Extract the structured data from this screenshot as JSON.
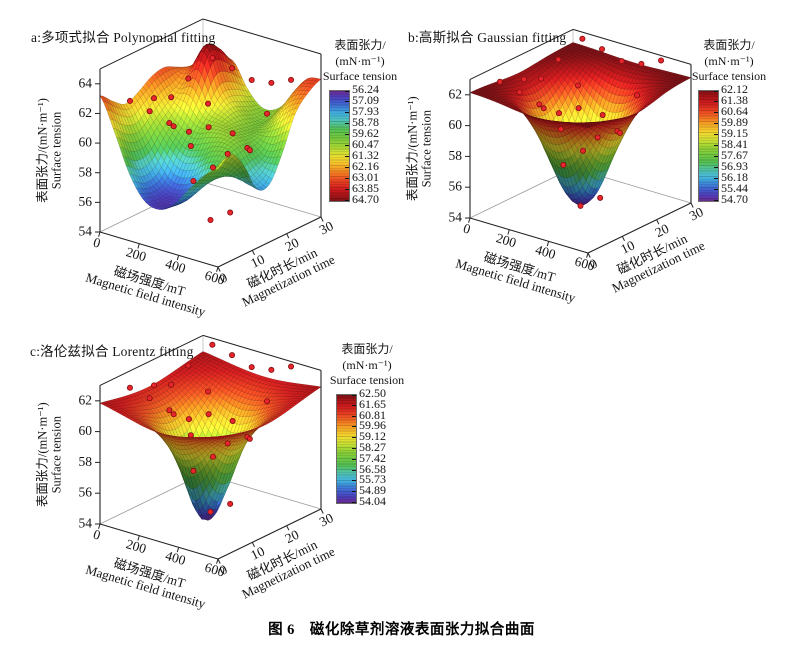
{
  "figure": {
    "caption": "图 6　磁化除草剂溶液表面张力拟合曲面"
  },
  "chart_data": {
    "type": "surface_3d",
    "colormap": {
      "stops": [
        [
          0.0,
          "#6b2a8f"
        ],
        [
          0.06,
          "#4b3fc0"
        ],
        [
          0.13,
          "#3b6fd6"
        ],
        [
          0.2,
          "#41aede"
        ],
        [
          0.27,
          "#52c7c0"
        ],
        [
          0.34,
          "#4fbe54"
        ],
        [
          0.44,
          "#7bcb3b"
        ],
        [
          0.52,
          "#aed832"
        ],
        [
          0.58,
          "#e5e634"
        ],
        [
          0.65,
          "#f6c62b"
        ],
        [
          0.72,
          "#f59422"
        ],
        [
          0.79,
          "#f05623"
        ],
        [
          0.88,
          "#d61d1f"
        ],
        [
          0.95,
          "#a81418"
        ],
        [
          1.0,
          "#7d1116"
        ]
      ]
    },
    "point_color": "#e8252b",
    "data_points": [
      [
        100,
        3,
        62.9
      ],
      [
        100,
        10,
        62.3
      ],
      [
        100,
        15,
        61.8
      ],
      [
        100,
        20,
        62.5
      ],
      [
        100,
        27,
        63.1
      ],
      [
        200,
        3,
        62.6
      ],
      [
        200,
        10,
        60.8
      ],
      [
        200,
        15,
        58.9
      ],
      [
        200,
        20,
        61.2
      ],
      [
        200,
        27,
        62.8
      ],
      [
        300,
        3,
        62.2
      ],
      [
        300,
        10,
        57.5
      ],
      [
        300,
        15,
        54.3
      ],
      [
        300,
        20,
        58.2
      ],
      [
        300,
        27,
        62.4
      ],
      [
        400,
        3,
        62.0
      ],
      [
        400,
        10,
        58.8
      ],
      [
        400,
        15,
        55.2
      ],
      [
        400,
        20,
        59.0
      ],
      [
        400,
        27,
        62.6
      ],
      [
        500,
        3,
        62.7
      ],
      [
        500,
        10,
        61.5
      ],
      [
        500,
        15,
        59.8
      ],
      [
        500,
        20,
        61.7
      ],
      [
        500,
        27,
        63.2
      ]
    ],
    "charts": [
      {
        "id": "a",
        "title": "a:多项式拟合 Polynomial fitting",
        "x_axis": {
          "label_cn": "磁场强度/mT",
          "label_en": "Magnetic field intensity",
          "range": [
            0,
            600
          ],
          "ticks": [
            0,
            200,
            400,
            600
          ]
        },
        "y_axis": {
          "label_cn": "磁化时长/min",
          "label_en": "Magnetization time",
          "range": [
            0,
            30
          ],
          "ticks": [
            0,
            10,
            20,
            30
          ]
        },
        "z_axis": {
          "label_cn": "表面张力/(mN·m⁻¹)",
          "label_en": "Surface tension",
          "range": [
            54,
            65
          ],
          "ticks": [
            54,
            56,
            58,
            60,
            62,
            64
          ]
        },
        "colorbar": {
          "title_cn": "表面张力/",
          "title_unit": "(mN·m⁻¹)",
          "title_en": "Surface tension",
          "low_at_top": true,
          "range": [
            56.24,
            64.7
          ],
          "tick_labels": [
            "56.24",
            "57.09",
            "57.93",
            "58.78",
            "59.62",
            "60.47",
            "61.32",
            "62.16",
            "63.01",
            "63.85",
            "64.70"
          ]
        },
        "surface_grid": [
          [
            63.2,
            61.0,
            58.5,
            57.0,
            56.7,
            57.3,
            58.6,
            59.8,
            60.6
          ],
          [
            62.4,
            60.2,
            57.9,
            56.8,
            56.7,
            57.2,
            58.3,
            59.5,
            61.2
          ],
          [
            61.8,
            60.0,
            58.2,
            57.1,
            57.2,
            58.0,
            58.8,
            59.0,
            60.0
          ],
          [
            62.2,
            60.8,
            59.5,
            58.6,
            58.8,
            59.5,
            59.6,
            58.4,
            58.0
          ],
          [
            62.8,
            61.5,
            60.6,
            59.9,
            60.2,
            60.3,
            59.9,
            58.6,
            57.9
          ],
          [
            63.0,
            62.0,
            62.5,
            61.0,
            60.6,
            60.2,
            59.8,
            59.2,
            59.6
          ],
          [
            62.6,
            63.0,
            64.6,
            62.0,
            60.8,
            60.0,
            60.2,
            61.0,
            61.8
          ],
          [
            62.2,
            62.8,
            64.0,
            61.8,
            60.4,
            60.0,
            61.0,
            62.4,
            62.8
          ],
          [
            62.5,
            62.2,
            62.8,
            61.2,
            60.2,
            60.4,
            61.5,
            63.0,
            63.3
          ]
        ]
      },
      {
        "id": "b",
        "title": "b:高斯拟合 Gaussian fitting",
        "x_axis": {
          "label_cn": "磁场强度/mT",
          "label_en": "Magnetic field intensity",
          "range": [
            0,
            600
          ],
          "ticks": [
            0,
            200,
            400,
            600
          ]
        },
        "y_axis": {
          "label_cn": "磁化时长/min",
          "label_en": "Magnetization time",
          "range": [
            0,
            30
          ],
          "ticks": [
            0,
            10,
            20,
            30
          ]
        },
        "z_axis": {
          "label_cn": "表面张力/(mN·m⁻¹)",
          "label_en": "Surface tension",
          "range": [
            54,
            63
          ],
          "ticks": [
            54,
            56,
            58,
            60,
            62
          ]
        },
        "colorbar": {
          "title_cn": "表面张力/",
          "title_unit": "(mN·m⁻¹)",
          "title_en": "Surface tension",
          "low_at_top": false,
          "range": [
            54.7,
            62.12
          ],
          "tick_labels": [
            "62.12",
            "61.38",
            "60.64",
            "59.89",
            "59.15",
            "58.41",
            "57.67",
            "56.93",
            "56.18",
            "55.44",
            "54.70"
          ]
        },
        "surface_grid": [
          [
            62.14,
            62.1,
            62.01,
            61.88,
            61.79,
            61.82,
            61.94,
            62.06,
            62.12
          ],
          [
            62.1,
            61.94,
            61.57,
            61.03,
            60.68,
            60.79,
            61.29,
            61.77,
            62.03
          ],
          [
            62.01,
            61.59,
            60.59,
            59.17,
            58.22,
            58.54,
            59.85,
            61.14,
            61.84
          ],
          [
            61.91,
            61.19,
            59.47,
            57.03,
            55.4,
            55.95,
            58.2,
            60.41,
            61.62
          ],
          [
            61.88,
            61.08,
            59.19,
            56.48,
            54.67,
            55.28,
            57.78,
            60.23,
            61.56
          ],
          [
            61.96,
            61.38,
            60.03,
            58.09,
            56.79,
            57.23,
            59.02,
            60.77,
            61.73
          ],
          [
            62.06,
            61.8,
            61.18,
            60.29,
            59.69,
            59.89,
            60.72,
            61.52,
            61.96
          ],
          [
            62.12,
            62.05,
            61.86,
            61.6,
            61.42,
            61.48,
            61.72,
            61.96,
            62.09
          ],
          [
            62.15,
            62.13,
            62.09,
            62.04,
            62.01,
            62.02,
            62.07,
            62.11,
            62.14
          ]
        ]
      },
      {
        "id": "c",
        "title": "c:洛伦兹拟合 Lorentz fitting",
        "x_axis": {
          "label_cn": "磁场强度/mT",
          "label_en": "Magnetic field intensity",
          "range": [
            0,
            600
          ],
          "ticks": [
            0,
            200,
            400,
            600
          ]
        },
        "y_axis": {
          "label_cn": "磁化时长/min",
          "label_en": "Magnetization time",
          "range": [
            0,
            30
          ],
          "ticks": [
            0,
            10,
            20,
            30
          ]
        },
        "z_axis": {
          "label_cn": "表面张力/(mN·m⁻¹)",
          "label_en": "Surface tension",
          "range": [
            54,
            63
          ],
          "ticks": [
            54,
            56,
            58,
            60,
            62
          ]
        },
        "colorbar": {
          "title_cn": "表面张力/",
          "title_unit": "(mN·m⁻¹)",
          "title_en": "Surface tension",
          "low_at_top": false,
          "range": [
            54.04,
            62.5
          ],
          "tick_labels": [
            "62.50",
            "61.65",
            "60.81",
            "59.96",
            "59.12",
            "58.27",
            "57.42",
            "56.58",
            "55.73",
            "54.89",
            "54.04"
          ]
        },
        "surface_grid": [
          [
            61.84,
            61.63,
            61.39,
            61.16,
            61.05,
            61.12,
            61.32,
            61.57,
            61.79
          ],
          [
            61.67,
            61.33,
            60.87,
            60.35,
            60.06,
            60.23,
            60.73,
            61.22,
            61.59
          ],
          [
            61.5,
            60.99,
            60.14,
            58.91,
            58.02,
            58.58,
            59.84,
            60.8,
            61.39
          ],
          [
            61.39,
            60.72,
            59.43,
            57.0,
            54.64,
            56.19,
            58.91,
            60.46,
            61.25
          ],
          [
            61.37,
            60.69,
            59.35,
            56.72,
            54.05,
            55.81,
            58.79,
            60.42,
            61.23
          ],
          [
            61.47,
            60.93,
            59.99,
            58.54,
            57.41,
            58.13,
            59.64,
            60.72,
            61.35
          ],
          [
            61.63,
            61.27,
            60.74,
            60.12,
            59.76,
            59.98,
            60.58,
            61.14,
            61.55
          ],
          [
            61.8,
            61.58,
            61.3,
            61.04,
            60.9,
            60.98,
            61.23,
            61.51,
            61.75
          ],
          [
            61.95,
            61.82,
            61.67,
            61.55,
            61.49,
            61.52,
            61.63,
            61.78,
            61.92
          ]
        ]
      }
    ]
  }
}
